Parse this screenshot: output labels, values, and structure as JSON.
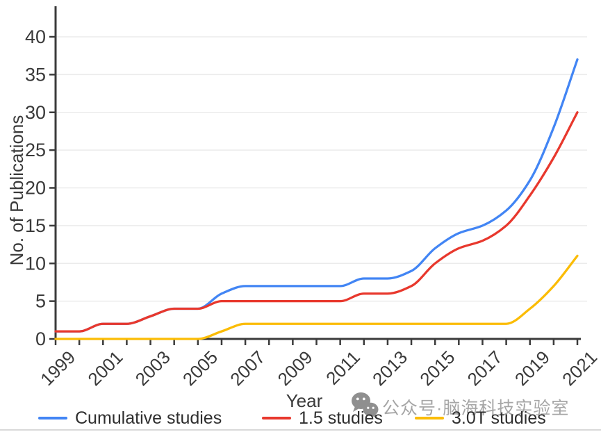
{
  "chart_data": {
    "type": "line",
    "title": "",
    "xlabel": "Year",
    "ylabel": "No. of Publications",
    "x": [
      1999,
      2000,
      2001,
      2002,
      2003,
      2004,
      2005,
      2006,
      2007,
      2008,
      2009,
      2010,
      2011,
      2012,
      2013,
      2014,
      2015,
      2016,
      2017,
      2018,
      2019,
      2020,
      2021
    ],
    "x_tick_labels": [
      "1999",
      "2001",
      "2003",
      "2005",
      "2007",
      "2009",
      "2011",
      "2013",
      "2015",
      "2017",
      "2019",
      "2021"
    ],
    "y_ticks": [
      0,
      5,
      10,
      15,
      20,
      25,
      30,
      35,
      40
    ],
    "ylim": [
      0,
      44
    ],
    "xlim": [
      1999,
      2021
    ],
    "grid": "horizontal-only",
    "legend_position": "bottom",
    "line_style": "smoothed-monotone",
    "series": [
      {
        "name": "Cumulative studies",
        "color": "#4285F4",
        "values": [
          1,
          1,
          2,
          2,
          3,
          4,
          4,
          6,
          7,
          7,
          7,
          7,
          7,
          8,
          8,
          9,
          12,
          14,
          15,
          17,
          21,
          28,
          37
        ]
      },
      {
        "name": "1.5 studies",
        "color": "#E8382D",
        "values": [
          1,
          1,
          2,
          2,
          3,
          4,
          4,
          5,
          5,
          5,
          5,
          5,
          5,
          6,
          6,
          7,
          10,
          12,
          13,
          15,
          19,
          24,
          30
        ]
      },
      {
        "name": "3.0T studies",
        "color": "#FBBC05",
        "values": [
          0,
          0,
          0,
          0,
          0,
          0,
          0,
          1,
          2,
          2,
          2,
          2,
          2,
          2,
          2,
          2,
          2,
          2,
          2,
          2,
          4,
          7,
          11
        ]
      }
    ],
    "axis_color": "#3b3b3b",
    "grid_color": "#ebebeb",
    "tick_label_color": "#3a3a3a"
  },
  "watermark": {
    "icon": "wechat-icon",
    "text": "公众号·脑海科技实验室"
  }
}
